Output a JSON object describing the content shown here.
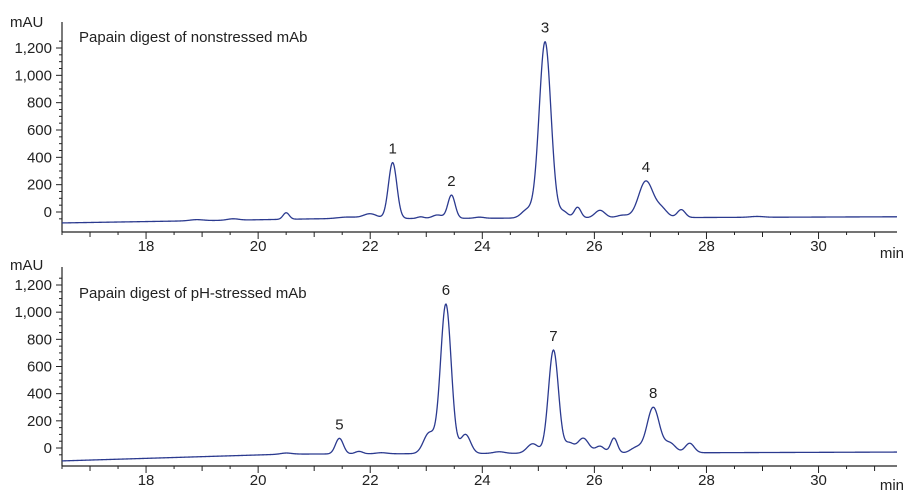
{
  "colors": {
    "trace": "#2b3a8f",
    "axis": "#222222",
    "text": "#222222",
    "background": "#ffffff"
  },
  "chart_data": [
    {
      "type": "line",
      "title": "Papain digest of nonstressed mAb",
      "ylabel": "mAU",
      "xlabel": "min",
      "xlim": [
        16.5,
        31.4
      ],
      "ylim": [
        -90,
        1340
      ],
      "xticks": [
        18,
        20,
        22,
        24,
        26,
        28,
        30
      ],
      "yticks": [
        0,
        200,
        400,
        600,
        800,
        1000,
        1200
      ],
      "ytick_labels": [
        "0",
        "200",
        "400",
        "600",
        "800",
        "1,000",
        "1,200"
      ],
      "grid": false,
      "baseline": {
        "start_x": 16.5,
        "start_y": -80,
        "end_x": 31.4,
        "end_y": -35,
        "bend_x": 21.0,
        "bend_y": -50
      },
      "peaks": [
        {
          "label": "",
          "x": 18.9,
          "height": 8,
          "width": 0.12
        },
        {
          "label": "",
          "x": 19.55,
          "height": 10,
          "width": 0.1
        },
        {
          "label": "",
          "x": 20.5,
          "height": 48,
          "width": 0.055
        },
        {
          "label": "",
          "x": 21.6,
          "height": 12,
          "width": 0.18
        },
        {
          "label": "",
          "x": 22.0,
          "height": 35,
          "width": 0.12
        },
        {
          "label": "1",
          "x": 22.4,
          "height": 410,
          "width": 0.075
        },
        {
          "label": "",
          "x": 22.9,
          "height": 12,
          "width": 0.06
        },
        {
          "label": "",
          "x": 23.2,
          "height": 25,
          "width": 0.09
        },
        {
          "label": "2",
          "x": 23.45,
          "height": 170,
          "width": 0.065
        },
        {
          "label": "",
          "x": 23.95,
          "height": 8,
          "width": 0.08
        },
        {
          "label": "",
          "x": 24.8,
          "height": 60,
          "width": 0.1
        },
        {
          "label": "3",
          "x": 25.12,
          "height": 1290,
          "width": 0.105
        },
        {
          "label": "",
          "x": 25.45,
          "height": 45,
          "width": 0.08
        },
        {
          "label": "",
          "x": 25.7,
          "height": 78,
          "width": 0.06
        },
        {
          "label": "",
          "x": 26.1,
          "height": 55,
          "width": 0.09
        },
        {
          "label": "",
          "x": 26.5,
          "height": 18,
          "width": 0.1
        },
        {
          "label": "4",
          "x": 26.92,
          "height": 268,
          "width": 0.13
        },
        {
          "label": "",
          "x": 27.2,
          "height": 60,
          "width": 0.1
        },
        {
          "label": "",
          "x": 27.55,
          "height": 58,
          "width": 0.07
        },
        {
          "label": "",
          "x": 28.9,
          "height": 6,
          "width": 0.12
        }
      ]
    },
    {
      "type": "line",
      "title": "Papain digest of pH-stressed mAb",
      "ylabel": "mAU",
      "xlabel": "min",
      "xlim": [
        16.5,
        31.4
      ],
      "ylim": [
        -110,
        1330
      ],
      "xticks": [
        18,
        20,
        22,
        24,
        26,
        28,
        30
      ],
      "yticks": [
        0,
        200,
        400,
        600,
        800,
        1000,
        1200
      ],
      "ytick_labels": [
        "0",
        "200",
        "400",
        "600",
        "800",
        "1,000",
        "1,200"
      ],
      "grid": false,
      "baseline": {
        "start_x": 16.5,
        "start_y": -95,
        "end_x": 31.4,
        "end_y": -30,
        "bend_x": 20.5,
        "bend_y": -45
      },
      "peaks": [
        {
          "label": "",
          "x": 20.5,
          "height": 8,
          "width": 0.1
        },
        {
          "label": "5",
          "x": 21.45,
          "height": 115,
          "width": 0.07
        },
        {
          "label": "",
          "x": 21.8,
          "height": 18,
          "width": 0.07
        },
        {
          "label": "",
          "x": 22.2,
          "height": 8,
          "width": 0.1
        },
        {
          "label": "",
          "x": 23.05,
          "height": 150,
          "width": 0.1
        },
        {
          "label": "6",
          "x": 23.35,
          "height": 1100,
          "width": 0.095
        },
        {
          "label": "",
          "x": 23.7,
          "height": 140,
          "width": 0.09
        },
        {
          "label": "",
          "x": 24.3,
          "height": 12,
          "width": 0.1
        },
        {
          "label": "",
          "x": 24.9,
          "height": 70,
          "width": 0.1
        },
        {
          "label": "7",
          "x": 25.27,
          "height": 760,
          "width": 0.09
        },
        {
          "label": "",
          "x": 25.55,
          "height": 70,
          "width": 0.08
        },
        {
          "label": "",
          "x": 25.8,
          "height": 110,
          "width": 0.1
        },
        {
          "label": "",
          "x": 26.1,
          "height": 50,
          "width": 0.08
        },
        {
          "label": "",
          "x": 26.35,
          "height": 110,
          "width": 0.06
        },
        {
          "label": "",
          "x": 26.75,
          "height": 40,
          "width": 0.1
        },
        {
          "label": "8",
          "x": 27.05,
          "height": 335,
          "width": 0.11
        },
        {
          "label": "",
          "x": 27.35,
          "height": 70,
          "width": 0.1
        },
        {
          "label": "",
          "x": 27.7,
          "height": 70,
          "width": 0.08
        }
      ]
    }
  ]
}
